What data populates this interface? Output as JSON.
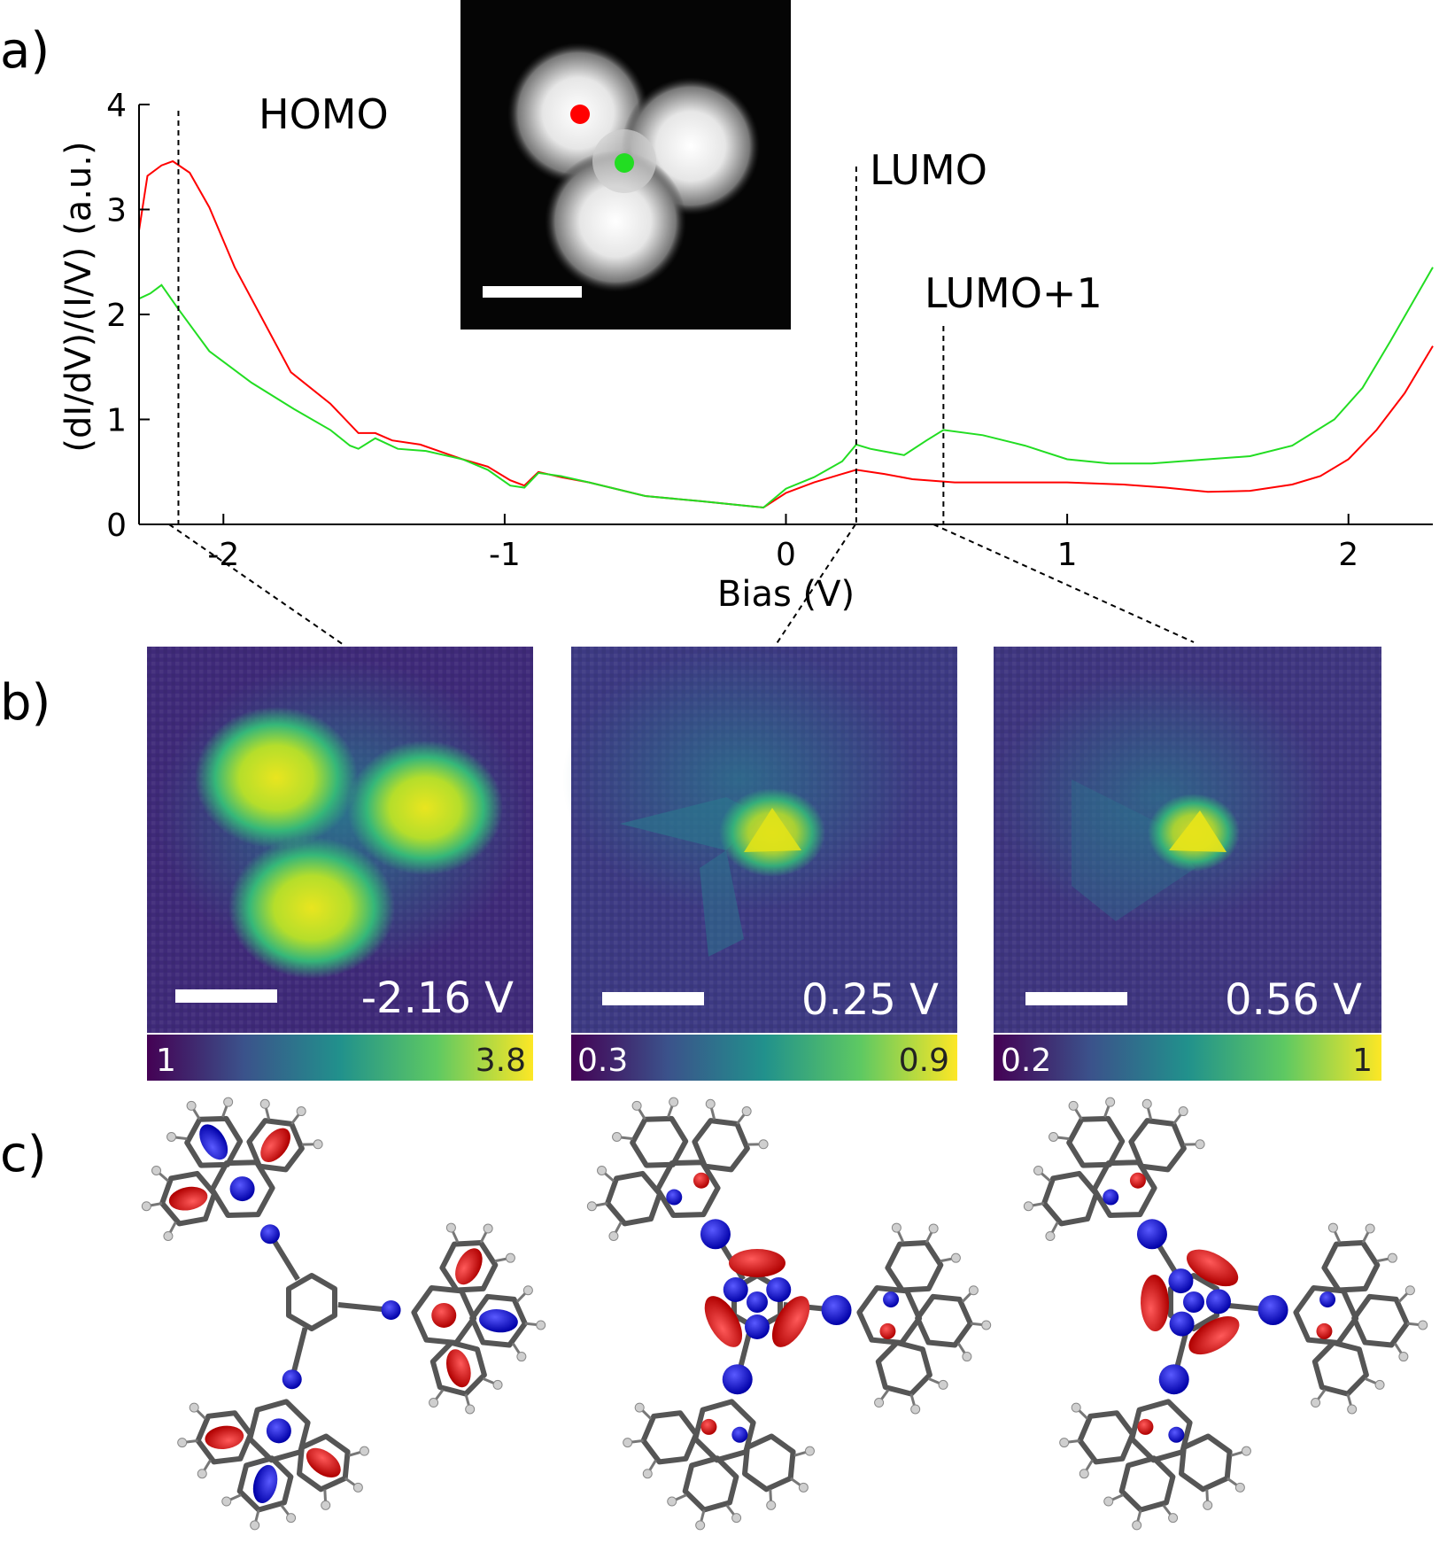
{
  "panel_labels": [
    "a)",
    "b)",
    "c)"
  ],
  "chart_data": {
    "type": "line",
    "xlabel": "Bias (V)",
    "ylabel": "(dI/dV)/(I/V) (a.u.)",
    "xlim": [
      -2.3,
      2.3
    ],
    "ylim": [
      0,
      4
    ],
    "xticks": [
      -2,
      -1,
      0,
      1,
      2
    ],
    "yticks": [
      0,
      1,
      2,
      3,
      4
    ],
    "grid": false,
    "series": [
      {
        "color": "#ff0000",
        "x": [
          -2.3,
          -2.27,
          -2.22,
          -2.18,
          -2.12,
          -2.05,
          -1.96,
          -1.86,
          -1.76,
          -1.62,
          -1.52,
          -1.46,
          -1.4,
          -1.3,
          -1.15,
          -1.06,
          -0.98,
          -0.93,
          -0.88,
          -0.8,
          -0.7,
          -0.5,
          -0.3,
          -0.15,
          -0.08,
          0.0,
          0.1,
          0.2,
          0.25,
          0.35,
          0.45,
          0.6,
          0.8,
          1.0,
          1.2,
          1.35,
          1.5,
          1.65,
          1.8,
          1.9,
          2.0,
          2.1,
          2.2,
          2.3
        ],
        "y": [
          2.8,
          3.32,
          3.42,
          3.46,
          3.35,
          3.02,
          2.45,
          1.95,
          1.45,
          1.15,
          0.87,
          0.87,
          0.8,
          0.76,
          0.62,
          0.55,
          0.42,
          0.37,
          0.5,
          0.45,
          0.4,
          0.27,
          0.22,
          0.18,
          0.16,
          0.3,
          0.4,
          0.48,
          0.52,
          0.48,
          0.43,
          0.4,
          0.4,
          0.4,
          0.38,
          0.35,
          0.31,
          0.32,
          0.38,
          0.46,
          0.62,
          0.9,
          1.25,
          1.7
        ]
      },
      {
        "color": "#22dd22",
        "x": [
          -2.3,
          -2.26,
          -2.22,
          -2.16,
          -2.05,
          -1.9,
          -1.75,
          -1.62,
          -1.55,
          -1.52,
          -1.46,
          -1.38,
          -1.28,
          -1.15,
          -1.06,
          -0.98,
          -0.93,
          -0.88,
          -0.8,
          -0.7,
          -0.5,
          -0.3,
          -0.15,
          -0.08,
          0.0,
          0.1,
          0.2,
          0.25,
          0.3,
          0.42,
          0.5,
          0.56,
          0.7,
          0.85,
          1.0,
          1.15,
          1.3,
          1.5,
          1.65,
          1.8,
          1.95,
          2.05,
          2.15,
          2.3
        ],
        "y": [
          2.15,
          2.2,
          2.28,
          2.05,
          1.65,
          1.35,
          1.1,
          0.9,
          0.75,
          0.72,
          0.82,
          0.72,
          0.7,
          0.62,
          0.52,
          0.37,
          0.35,
          0.49,
          0.46,
          0.4,
          0.27,
          0.22,
          0.18,
          0.16,
          0.34,
          0.45,
          0.6,
          0.76,
          0.72,
          0.66,
          0.8,
          0.9,
          0.85,
          0.75,
          0.62,
          0.58,
          0.58,
          0.62,
          0.65,
          0.75,
          1.0,
          1.3,
          1.75,
          2.45
        ]
      }
    ],
    "annotations": [
      {
        "text": "HOMO",
        "x": -2.16
      },
      {
        "text": "LUMO",
        "x": 0.25
      },
      {
        "text": "LUMO+1",
        "x": 0.56
      }
    ]
  },
  "maps": [
    {
      "label": "-2.16 V",
      "cmin": "1",
      "cmax": "3.8"
    },
    {
      "label": "0.25 V",
      "cmin": "0.3",
      "cmax": "0.9"
    },
    {
      "label": "0.56 V",
      "cmin": "0.2",
      "cmax": "1"
    }
  ],
  "colors": {
    "spectrum_red": "#ff0000",
    "spectrum_green": "#22dd22",
    "orbital_positive": "#d11111",
    "orbital_negative": "#1010d8",
    "viridis_low": "#440154",
    "viridis_mid": "#21918c",
    "viridis_high": "#fde725"
  }
}
